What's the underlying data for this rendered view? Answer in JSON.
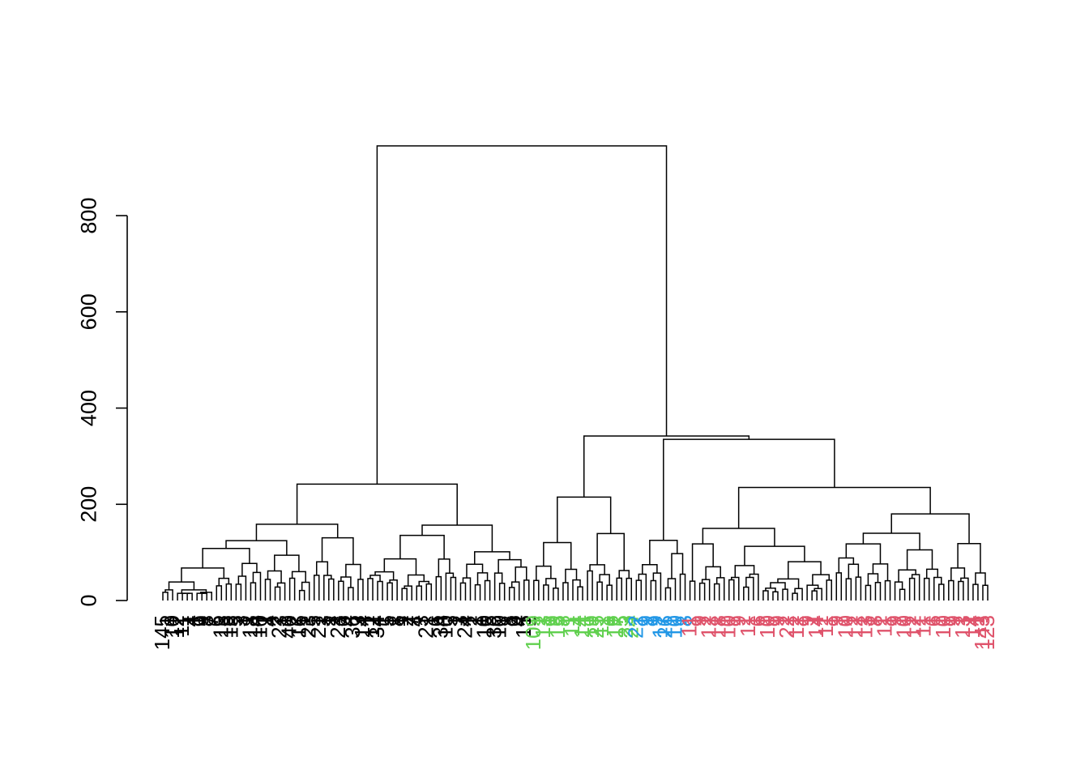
{
  "chart_data": {
    "type": "dendrogram",
    "title": "",
    "xlabel": "",
    "ylabel": "",
    "ylim": [
      0,
      945
    ],
    "y_ticks": [
      0,
      200,
      400,
      600,
      800
    ],
    "tick_labels": [
      "0",
      "200",
      "400",
      "600",
      "800"
    ],
    "merge_heights": {
      "root": 945,
      "left_black_cluster": 242,
      "right_cluster": 342,
      "green_cluster": 215,
      "blue_red_cluster": 335,
      "red_cluster": 235,
      "red_left": 150,
      "red_right": 180,
      "blue_cluster": 125
    },
    "clusters": [
      {
        "color": "#000000",
        "leaf_count": 76,
        "leaf_labels": [
          "145",
          "1",
          "10",
          "12",
          "11",
          "1",
          "4",
          "1",
          "9",
          "8",
          "7",
          "6",
          "13",
          "15",
          "15",
          "5",
          "3",
          "1",
          "18",
          "14",
          "10",
          "1",
          "4",
          "2",
          "23",
          "1",
          "40",
          "2",
          "16",
          "1",
          "23",
          "5",
          "21",
          "3",
          "1",
          "2",
          "23",
          "6",
          "4",
          "36",
          "3",
          "14",
          "1",
          "12",
          "34",
          "1",
          "5",
          "1",
          "8",
          "1",
          "2",
          "7",
          "4",
          "3",
          "21",
          "1",
          "6",
          "34",
          "10",
          "5",
          "1",
          "3",
          "24",
          "1",
          "2",
          "1",
          "10",
          "5",
          "36",
          "10",
          "1",
          "8",
          "6",
          "4",
          "15",
          "1"
        ]
      },
      {
        "color": "#61D04F",
        "leaf_count": 21,
        "leaf_labels": [
          "109",
          "1",
          "13",
          "1",
          "9",
          "15",
          "8",
          "1",
          "11",
          "4",
          "14",
          "1",
          "19",
          "25",
          "11",
          "1",
          "6",
          "17",
          "5",
          "23",
          "24"
        ]
      },
      {
        "color": "#2297E6",
        "leaf_count": 11,
        "leaf_labels": [
          "22",
          "1",
          "9",
          "1",
          "9",
          "17",
          "26",
          "1",
          "10",
          "1",
          "8"
        ]
      },
      {
        "color": "#DF536B",
        "leaf_count": 62,
        "leaf_labels": [
          "11",
          "1",
          "9",
          "1",
          "12",
          "1",
          "18",
          "1",
          "10",
          "1",
          "9",
          "1",
          "11",
          "1",
          "6",
          "1",
          "10",
          "1",
          "9",
          "1",
          "22",
          "1",
          "12",
          "1",
          "9",
          "1",
          "14",
          "1",
          "11",
          "1",
          "9",
          "1",
          "10",
          "1",
          "12",
          "1",
          "13",
          "1",
          "8",
          "1",
          "11",
          "1",
          "9",
          "1",
          "10",
          "1",
          "12",
          "1",
          "11",
          "1",
          "6",
          "1",
          "10",
          "1",
          "9",
          "1",
          "13",
          "1",
          "14",
          "1",
          "143",
          "123"
        ]
      }
    ]
  }
}
